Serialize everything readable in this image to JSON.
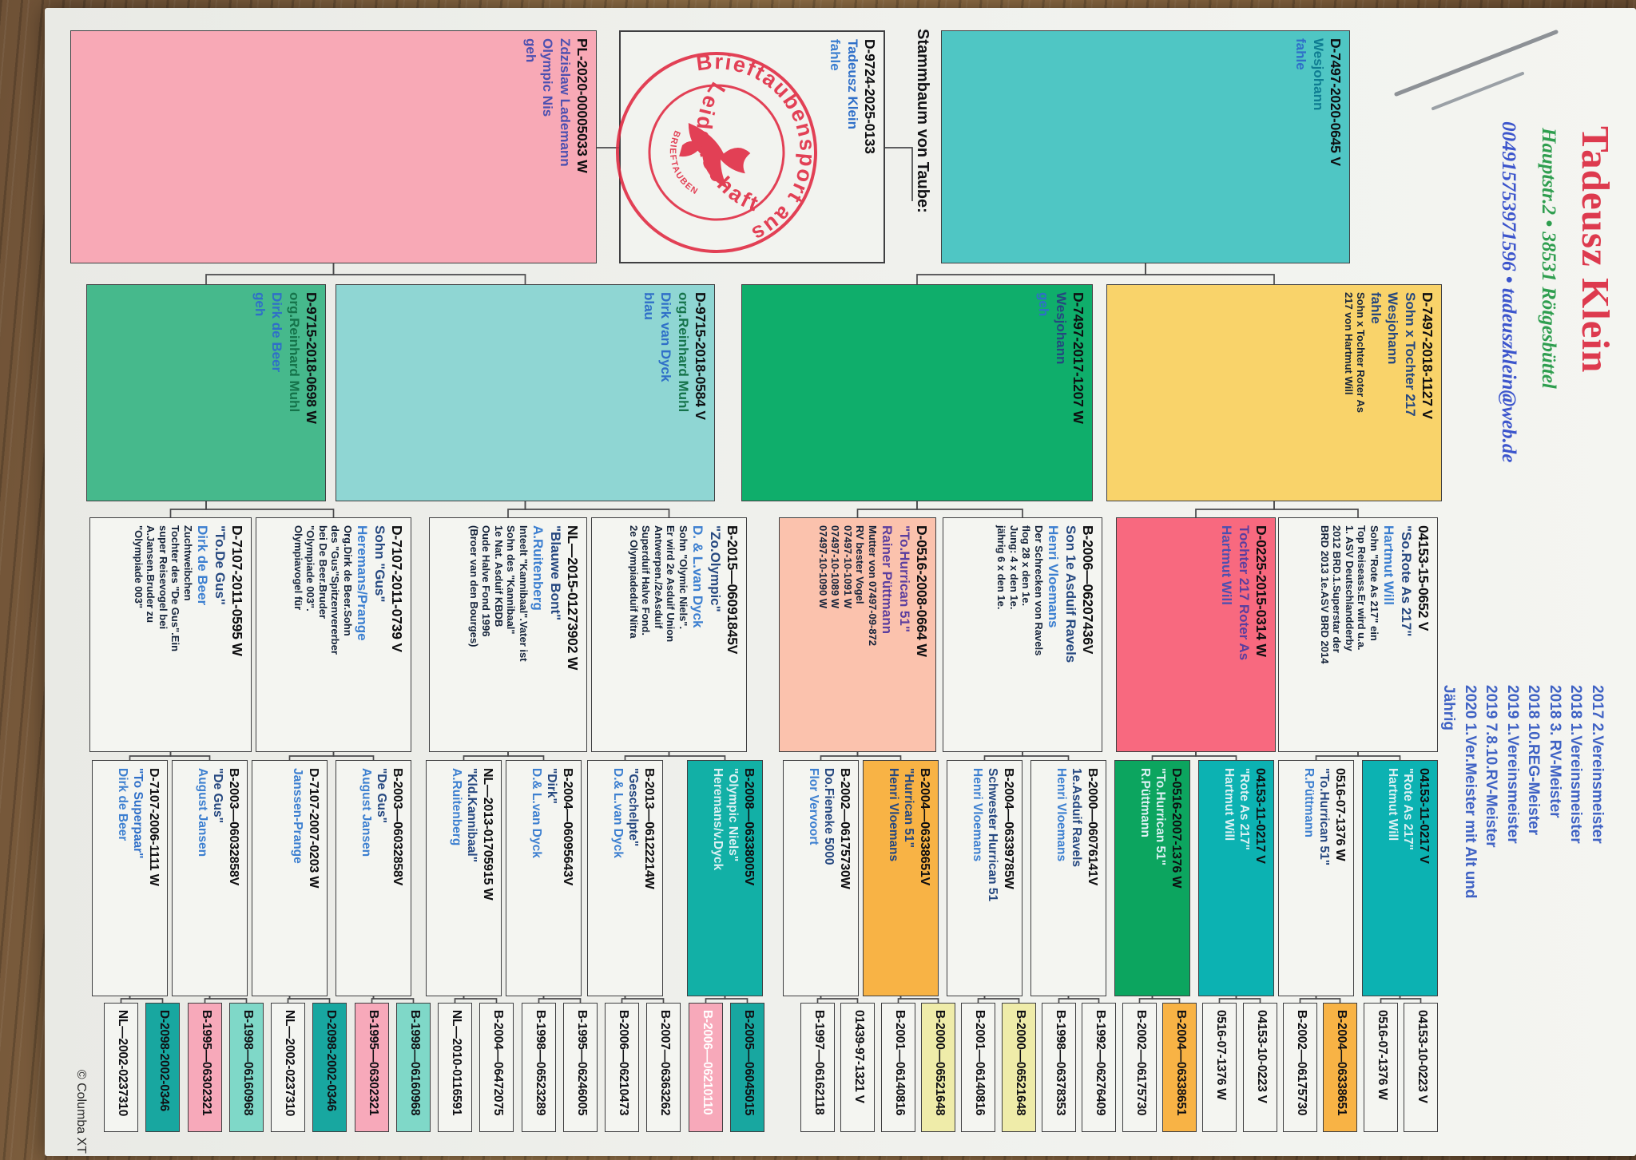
{
  "header": {
    "name": "Tadeusz Klein",
    "address": "Hauptstr.2 • 38531 Rötgesbüttel",
    "contact": "004915753971596 • tadeuszklein@web.de",
    "achievements": [
      "2017 2.Vereinsmeister",
      "2018 1.Vereinsmeister",
      "2018 3.  RV-Meister",
      "2018 10.REG-Meister",
      "2019 1.Vereinsmeister",
      "2019 7.8.10.RV-Meister",
      "2020 1.Ver.Meister mit Alt und",
      "Jährig"
    ],
    "pedigree_label": "Stammbaum von Taube:"
  },
  "stamp": {
    "arc_top": "Brieftaubensport aus",
    "arc_bottom": "Leidenschaft",
    "inner": "BRIEFTAUBEN",
    "color": "#e02840"
  },
  "footer": {
    "credit": "© Columba XT"
  },
  "palette": {
    "navy": "#25477f",
    "blue": "#2f6fc8",
    "lightblue": "#3c7fd0",
    "purple": "#5b3e9e",
    "indigo": "#4c50b0",
    "green": "#15734a",
    "tealdark": "#0f7d92",
    "pale": "#ddf1f4",
    "white": "#ffffff",
    "black": "#101014"
  },
  "tree": {
    "subject": {
      "ring": "D-9724-2025-0133",
      "lines": [
        [
          "Tadeusz Klein",
          "blue"
        ],
        [
          "fahle",
          "lightblue"
        ]
      ],
      "bg": "#f2f3ef"
    },
    "gen1": [
      {
        "role": "vater",
        "ring": "D-7497-2020-0645 V",
        "lines": [
          [
            "Wesjohann",
            "tealdark"
          ],
          [
            "fahle",
            "blue"
          ]
        ],
        "bg": "#4fc6c4"
      },
      {
        "role": "mutter",
        "ring": "PL-2020-00005033 W",
        "lines": [
          [
            "Zdzislaw Lademann",
            "indigo"
          ],
          [
            "Olympic Nis",
            "indigo"
          ],
          [
            "geh",
            "indigo"
          ]
        ],
        "bg": "#f8a9b6"
      }
    ],
    "gen2": [
      {
        "ring": "D-7497-2018-1127 V",
        "lines": [
          [
            "Sohn x Tochter 217",
            "navy"
          ],
          [
            "Wesjohann",
            "navy"
          ],
          [
            "fahle",
            "navy"
          ]
        ],
        "small": [
          "Sohn x Tochter Roter As",
          "217 von Hartmut Will"
        ],
        "bg": "#f9d36a"
      },
      {
        "ring": "D-7497-2017-1207 W",
        "lines": [
          [
            "Wesjohann",
            "navy"
          ],
          [
            "geh",
            "blue"
          ]
        ],
        "small": [],
        "bg": "#0fae6b"
      },
      {
        "ring": "D-9715-2018-0584 V",
        "lines": [
          [
            "org.Reinhard Muhl",
            "green"
          ],
          [
            "Dirk van Dyck",
            "blue"
          ],
          [
            "blau",
            "blue"
          ]
        ],
        "small": [],
        "bg": "#8fd6d3"
      },
      {
        "ring": "D-9715-2018-0698 W",
        "lines": [
          [
            "org.Reinhard Muhl",
            "green"
          ],
          [
            "Dirk de Beer",
            "blue"
          ],
          [
            "geh",
            "blue"
          ]
        ],
        "small": [],
        "bg": "#46b98c"
      }
    ],
    "gen3": [
      {
        "ring": "04153-15-0652 V",
        "lines": [
          [
            "\"So.Rote As 217\"",
            "navy"
          ],
          [
            "Hartmut Will",
            "lightblue"
          ]
        ],
        "details": [
          "Sohn \"Rote As 217\" ein",
          "Top Reiseass.Er wird u.a.",
          "1. ASV Deutschlandderby",
          "2012 BRD.1.Superstar der",
          "BRD 2013 1e.ASV BRD 2014"
        ],
        "bg": "#f4f5f1"
      },
      {
        "ring": "D-0225-2015-0314 W",
        "lines": [
          [
            "Tochter 217 Roter As",
            "purple"
          ],
          [
            "Hartmut Will",
            "indigo"
          ]
        ],
        "details": [],
        "bg": "#f8697f"
      },
      {
        "ring": "B-2006—06207436V",
        "lines": [
          [
            "Son 1e Asduif Ravels",
            "navy"
          ],
          [
            "Henri Vloemans",
            "lightblue"
          ]
        ],
        "details": [
          "Der Schrecken von Ravels",
          "flog 28 x den 1e.",
          "Jung: 4 x den 1e.",
          "jährig 6 x den 1e."
        ],
        "bg": "#f4f5f1"
      },
      {
        "ring": "D-0516-2008-0664 W",
        "lines": [
          [
            "\"To.Hurrican 51\"",
            "purple"
          ],
          [
            "Rainer Püttmann",
            "purple"
          ]
        ],
        "details": [
          "Mutter von 07497-09-872",
          "RV bester Vogel",
          "07497-10-1091 W",
          "07497-10-1089 W",
          "07497-10-1090 W"
        ],
        "bg": "#fbc2ad"
      },
      {
        "ring": "B-2015—06091845V",
        "lines": [
          [
            "\"Zo.Olympic\"",
            "navy"
          ],
          [
            "D. & L.van Dyck",
            "lightblue"
          ]
        ],
        "details": [
          "Sohn \"Olymic Niels\".",
          "Er wird 2e Asduif Union",
          "Antwerpen./2eAsduif",
          "Superduif Halve Fond.",
          "2e Olympiadeduif Nitra"
        ],
        "bg": "#f4f5f1"
      },
      {
        "ring": "NL—2015-01273902 W",
        "lines": [
          [
            "\"Blauwe Bont\"",
            "navy"
          ],
          [
            "A.Ruitenberg",
            "lightblue"
          ]
        ],
        "details": [
          "Inteelt \"Kannibaal\".Vater ist",
          "Sohn des \"Kannibaal\"",
          "1e Nat. Asduif KBDB",
          "Oude Halve Fond 1996",
          "(Broer van den Bourges)"
        ],
        "bg": "#f4f5f1"
      },
      {
        "ring": "D-7107-2011-0739 V",
        "lines": [
          [
            "Sohn \"Gus\"",
            "navy"
          ],
          [
            "Heremans/Prange",
            "lightblue"
          ]
        ],
        "details": [
          "Org.Dirk de Beer.Sohn",
          "des \"Gus\"Spitzenvererber",
          "bei De Beer.Bruder",
          "\"Olympiade 003\".",
          "Olympiavogel für"
        ],
        "bg": "#f4f5f1"
      },
      {
        "ring": "D-7107-2011-0595 W",
        "lines": [
          [
            "\"To.De Gus\"",
            "navy"
          ],
          [
            "Dirk de Beer",
            "lightblue"
          ]
        ],
        "details": [
          "Zuchtweibchen",
          "Tochter des \"De Gus\".Ein",
          "super Reisevogel bei",
          "A.Jansen.Bruder zu",
          "\"Olympiade 003\""
        ],
        "bg": "#f4f5f1"
      }
    ],
    "gen4": [
      {
        "ring": "04153-11-0217 V",
        "lines": [
          [
            "\"Rote As 217\"",
            "pale"
          ],
          [
            "Hartmut Will",
            "pale"
          ]
        ],
        "bg": "#0cb2b2"
      },
      {
        "ring": "0516-07-1376 W",
        "lines": [
          [
            "\"To.Hurrican 51\"",
            "navy"
          ],
          [
            "R.Püttmann",
            "lightblue"
          ]
        ],
        "bg": "#f4f5f1"
      },
      {
        "ring": "04153-11-0217 V",
        "lines": [
          [
            "\"Rote As 217\"",
            "pale"
          ],
          [
            "Hartmut Will",
            "pale"
          ]
        ],
        "bg": "#0cb2b2"
      },
      {
        "ring": "D-0516-2007-1376 W",
        "lines": [
          [
            "\"To.Hurrican 51\"",
            "pale"
          ],
          [
            "R.Püttmann",
            "pale"
          ]
        ],
        "bg": "#0ca55f"
      },
      {
        "ring": "B-2000—06076141V",
        "lines": [
          [
            "1e.Asduif Ravels",
            "navy"
          ],
          [
            "Henri Vloemans",
            "lightblue"
          ]
        ],
        "bg": "#f4f5f1"
      },
      {
        "ring": "B-2004—06339785W",
        "lines": [
          [
            "Schwester Hurrican 51",
            "navy"
          ],
          [
            "Henri Vloemans",
            "lightblue"
          ]
        ],
        "bg": "#f4f5f1"
      },
      {
        "ring": "B-2004—06338651V",
        "lines": [
          [
            "\"Hurrican 51\"",
            "navy"
          ],
          [
            "Henri Vloemans",
            "navy"
          ]
        ],
        "bg": "#f8b345"
      },
      {
        "ring": "B-2002—06175730W",
        "lines": [
          [
            "Do.Fieneke 5000",
            "navy"
          ],
          [
            "Flor Vervoort",
            "lightblue"
          ]
        ],
        "bg": "#f4f5f1"
      },
      {
        "ring": "B-2008—06338005V",
        "lines": [
          [
            "\"Olympic Niels\"",
            "pale"
          ],
          [
            "Heremans/v.Dyck",
            "pale"
          ]
        ],
        "bg": "#12b0a6"
      },
      {
        "ring": "B-2013—06122214W",
        "lines": [
          [
            "\"Geschelpte\"",
            "navy"
          ],
          [
            "D.& L.van Dyck",
            "lightblue"
          ]
        ],
        "bg": "#f4f5f1"
      },
      {
        "ring": "B-2004—06095643V",
        "lines": [
          [
            "\"Dirk\"",
            "navy"
          ],
          [
            "D.& L.van Dyck",
            "lightblue"
          ]
        ],
        "bg": "#f4f5f1"
      },
      {
        "ring": "NL—2013-01705915 W",
        "lines": [
          [
            "\"Kld.Kannibaal\"",
            "navy"
          ],
          [
            "A.Ruitenberg",
            "lightblue"
          ]
        ],
        "bg": "#f4f5f1"
      },
      {
        "ring": "B-2003—06032858V",
        "lines": [
          [
            "\"De Gus\"",
            "navy"
          ],
          [
            "August Jansen",
            "lightblue"
          ]
        ],
        "bg": "#f4f5f1"
      },
      {
        "ring": "D-7107-2007-0203 W",
        "lines": [
          [
            "Janssen-Prange",
            "lightblue"
          ]
        ],
        "bg": "#f4f5f1"
      },
      {
        "ring": "B-2003—06032858V",
        "lines": [
          [
            "\"De Gus\"",
            "navy"
          ],
          [
            "August Jansen",
            "lightblue"
          ]
        ],
        "bg": "#f4f5f1"
      },
      {
        "ring": "D-7107-2006-1111 W",
        "lines": [
          [
            "\"To Superpaar\"",
            "blue"
          ],
          [
            "Dirk de Beer",
            "lightblue"
          ]
        ],
        "bg": "#f4f5f1"
      }
    ],
    "gen5": [
      {
        "ring": "04153-10-0223 V",
        "bg": "#f4f5f1",
        "fg": "black"
      },
      {
        "ring": "0516-07-1376 W",
        "bg": "#f4f5f1",
        "fg": "black"
      },
      {
        "ring": "B-2004—06338651",
        "bg": "#f8b345",
        "fg": "black"
      },
      {
        "ring": "B-2002—06175730",
        "bg": "#f4f5f1",
        "fg": "black"
      },
      {
        "ring": "04153-10-0223 V",
        "bg": "#f4f5f1",
        "fg": "black"
      },
      {
        "ring": "0516-07-1376 W",
        "bg": "#f4f5f1",
        "fg": "black"
      },
      {
        "ring": "B-2004—06338651",
        "bg": "#f8b345",
        "fg": "black"
      },
      {
        "ring": "B-2002—06175730",
        "bg": "#f4f5f1",
        "fg": "black"
      },
      {
        "ring": "B-1992—06276409",
        "bg": "#f4f5f1",
        "fg": "black"
      },
      {
        "ring": "B-1998—06378353",
        "bg": "#f4f5f1",
        "fg": "black"
      },
      {
        "ring": "B-2000—06521648",
        "bg": "#efeca9",
        "fg": "black"
      },
      {
        "ring": "B-2001—06140816",
        "bg": "#f4f5f1",
        "fg": "black"
      },
      {
        "ring": "B-2000—06521648",
        "bg": "#efeca9",
        "fg": "black"
      },
      {
        "ring": "B-2001—06140816",
        "bg": "#f4f5f1",
        "fg": "black"
      },
      {
        "ring": "01439-97-1321 V",
        "bg": "#f4f5f1",
        "fg": "black"
      },
      {
        "ring": "B-1997—06162118",
        "bg": "#f4f5f1",
        "fg": "black"
      },
      {
        "ring": "B-2005—06045015",
        "bg": "#18a7a0",
        "fg": "black"
      },
      {
        "ring": "B-2006—06210110",
        "bg": "#f7a9ba",
        "fg": "white"
      },
      {
        "ring": "B-2007—06363262",
        "bg": "#f4f5f1",
        "fg": "black"
      },
      {
        "ring": "B-2006—06210473",
        "bg": "#f4f5f1",
        "fg": "black"
      },
      {
        "ring": "B-1995—06246005",
        "bg": "#f4f5f1",
        "fg": "black"
      },
      {
        "ring": "B-1998—06523289",
        "bg": "#f4f5f1",
        "fg": "black"
      },
      {
        "ring": "B-2004—06472075",
        "bg": "#f4f5f1",
        "fg": "black"
      },
      {
        "ring": "NL—2010-0116591",
        "bg": "#f4f5f1",
        "fg": "black"
      },
      {
        "ring": "B-1998—06160968",
        "bg": "#7fd8c8",
        "fg": "black"
      },
      {
        "ring": "B-1995—06302321",
        "bg": "#f7a9ba",
        "fg": "black"
      },
      {
        "ring": "D-2098-2002-0346",
        "bg": "#18a7a0",
        "fg": "black"
      },
      {
        "ring": "NL—2002-0237310",
        "bg": "#f4f5f1",
        "fg": "black"
      },
      {
        "ring": "B-1998—06160968",
        "bg": "#7fd8c8",
        "fg": "black"
      },
      {
        "ring": "B-1995—06302321",
        "bg": "#f7a9ba",
        "fg": "black"
      },
      {
        "ring": "D-2098-2002-0346",
        "bg": "#18a7a0",
        "fg": "black"
      },
      {
        "ring": "NL—2002-0237310",
        "bg": "#f4f5f1",
        "fg": "black"
      }
    ]
  }
}
